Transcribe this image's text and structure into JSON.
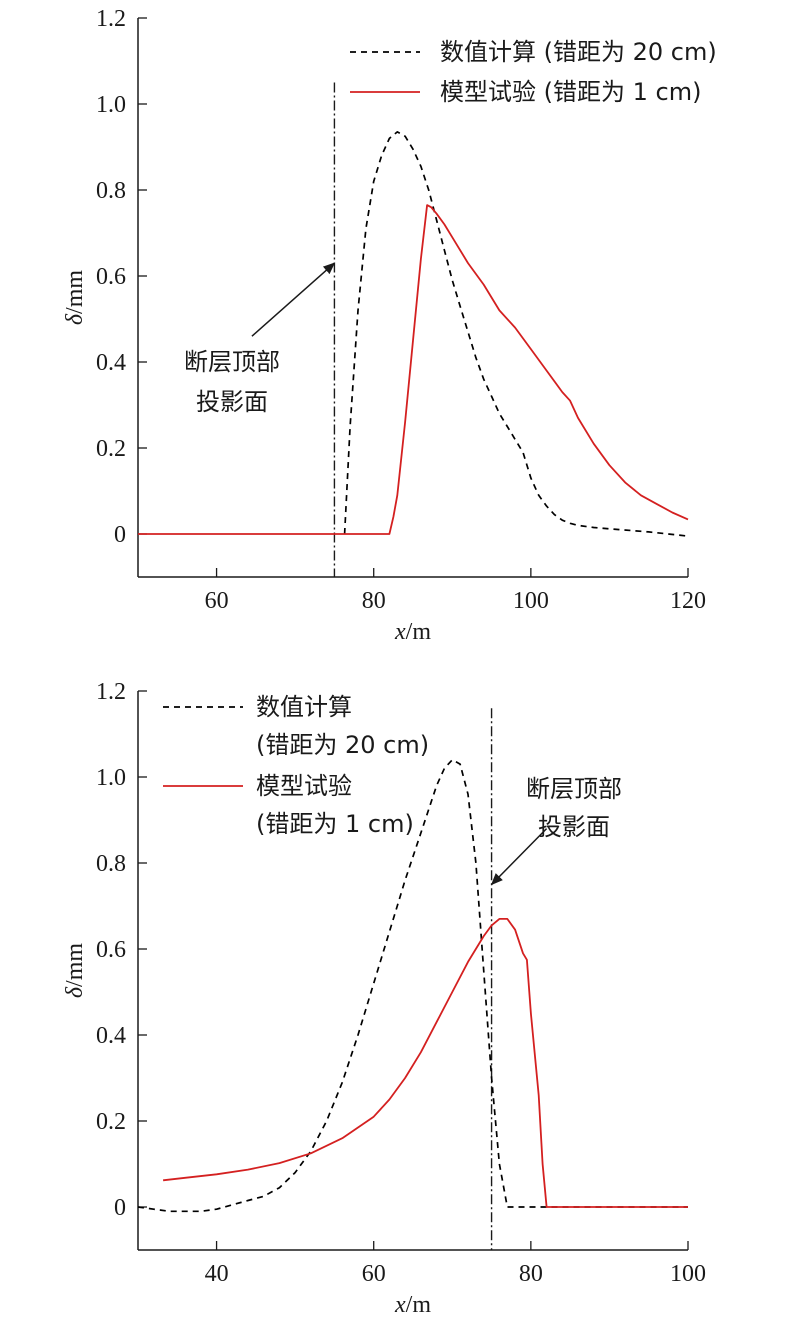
{
  "chart_data": [
    {
      "type": "line",
      "xlabel_var": "x",
      "xlabel_unit": "/m",
      "ylabel_var": "δ",
      "ylabel_unit": "/mm",
      "xlim": [
        50,
        120
      ],
      "ylim": [
        -0.1,
        1.2
      ],
      "xticks": [
        60,
        80,
        100,
        120
      ],
      "yticks": [
        0,
        0.2,
        0.4,
        0.6,
        0.8,
        1.0,
        1.2
      ],
      "ytick_labels": [
        "0",
        "0.2",
        "0.4",
        "0.6",
        "0.8",
        "1.0",
        "1.2"
      ],
      "grid": false,
      "legend_position": "top-right",
      "legend_lines": [
        "数值计算 (错距为 20 cm)",
        "模型试验 (错距为 1 cm)"
      ],
      "series": [
        {
          "name": "数值计算 (错距为 20 cm)",
          "style": "dashed",
          "color": "#000000",
          "x": [
            76.3,
            77,
            78,
            79,
            80,
            81,
            82,
            83,
            84,
            85,
            86,
            87,
            88,
            89,
            90,
            91,
            92,
            93,
            94,
            95,
            96,
            97,
            98,
            99,
            100,
            101,
            102,
            103,
            104,
            105,
            106,
            108,
            110,
            115,
            120
          ],
          "y": [
            0.0,
            0.25,
            0.52,
            0.71,
            0.82,
            0.88,
            0.92,
            0.935,
            0.925,
            0.895,
            0.855,
            0.8,
            0.73,
            0.66,
            0.59,
            0.53,
            0.47,
            0.41,
            0.36,
            0.32,
            0.28,
            0.25,
            0.22,
            0.19,
            0.13,
            0.09,
            0.065,
            0.045,
            0.032,
            0.025,
            0.02,
            0.015,
            0.012,
            0.005,
            -0.005
          ]
        },
        {
          "name": "模型试验 (错距为 1 cm)",
          "style": "solid",
          "color": "#d42020",
          "x": [
            50,
            60,
            70,
            80,
            82,
            82.5,
            83,
            84,
            85,
            86,
            86.8,
            87.3,
            88,
            89,
            90,
            92,
            94,
            96,
            98,
            100,
            102,
            104,
            105,
            106,
            108,
            110,
            112,
            114,
            116,
            118,
            120
          ],
          "y": [
            0,
            0,
            0,
            0,
            0,
            0.04,
            0.09,
            0.26,
            0.45,
            0.64,
            0.765,
            0.76,
            0.745,
            0.72,
            0.69,
            0.63,
            0.58,
            0.52,
            0.48,
            0.43,
            0.38,
            0.33,
            0.31,
            0.27,
            0.21,
            0.16,
            0.12,
            0.09,
            0.07,
            0.05,
            0.034
          ]
        }
      ],
      "reference_line": {
        "x": 75,
        "style": "dash-dot",
        "y_top": 1.05
      },
      "annotation": {
        "lines": [
          "断层顶部",
          "投影面"
        ],
        "arrow_tail": {
          "x": 64.5,
          "y": 0.46
        },
        "arrow_head": {
          "x": 75,
          "y": 0.63
        }
      }
    },
    {
      "type": "line",
      "xlabel_var": "x",
      "xlabel_unit": "/m",
      "ylabel_var": "δ",
      "ylabel_unit": "/mm",
      "xlim": [
        30,
        100
      ],
      "ylim": [
        -0.1,
        1.2
      ],
      "xticks": [
        40,
        60,
        80,
        100
      ],
      "yticks": [
        0,
        0.2,
        0.4,
        0.6,
        0.8,
        1.0,
        1.2
      ],
      "ytick_labels": [
        "0",
        "0.2",
        "0.4",
        "0.6",
        "0.8",
        "1.0",
        "1.2"
      ],
      "grid": false,
      "legend_position": "top-left",
      "legend_lines": [
        "数值计算",
        "(错距为 20 cm)",
        "模型试验",
        "(错距为 1 cm)"
      ],
      "series": [
        {
          "name": "数值计算 (错距为 20 cm)",
          "style": "dashed",
          "color": "#000000",
          "x": [
            30,
            32,
            34,
            36,
            38,
            40,
            42,
            44,
            46,
            48,
            50,
            52,
            54,
            56,
            58,
            60,
            62,
            64,
            66,
            68,
            69,
            70,
            71,
            72,
            73,
            74,
            75,
            76,
            77,
            80,
            90,
            100
          ],
          "y": [
            0,
            -0.005,
            -0.01,
            -0.01,
            -0.01,
            -0.005,
            0.005,
            0.015,
            0.025,
            0.045,
            0.08,
            0.13,
            0.2,
            0.29,
            0.4,
            0.52,
            0.64,
            0.76,
            0.87,
            0.98,
            1.02,
            1.04,
            1.03,
            0.96,
            0.8,
            0.55,
            0.3,
            0.1,
            0,
            0,
            0,
            0
          ]
        },
        {
          "name": "模型试验 (错距为 1 cm)",
          "style": "solid",
          "color": "#d42020",
          "x": [
            33.2,
            36,
            40,
            44,
            48,
            52,
            56,
            60,
            62,
            64,
            66,
            68,
            70,
            72,
            74,
            75,
            76,
            77,
            78,
            79,
            79.5,
            80,
            81,
            81.5,
            82,
            90,
            100
          ],
          "y": [
            0.062,
            0.068,
            0.076,
            0.087,
            0.102,
            0.125,
            0.16,
            0.21,
            0.25,
            0.3,
            0.36,
            0.43,
            0.5,
            0.57,
            0.63,
            0.655,
            0.67,
            0.67,
            0.645,
            0.59,
            0.575,
            0.45,
            0.26,
            0.1,
            0,
            0,
            0
          ]
        }
      ],
      "reference_line": {
        "x": 75,
        "style": "dash-dot",
        "y_top": 1.16
      },
      "annotation": {
        "lines": [
          "断层顶部",
          "投影面"
        ],
        "arrow_tail": {
          "x": 82,
          "y": 0.88
        },
        "arrow_head": {
          "x": 75,
          "y": 0.75
        }
      }
    }
  ]
}
